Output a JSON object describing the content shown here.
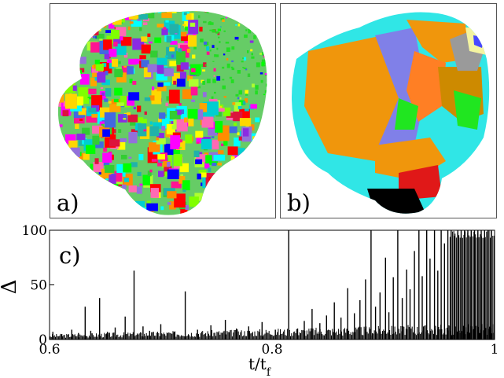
{
  "figure": {
    "panel_a_label": "a)",
    "panel_b_label": "b)",
    "panel_c_label": "c)"
  },
  "chart_data": {
    "type": "bar",
    "xlabel": "t/t",
    "xlabel_sub": "f",
    "ylabel": "Δ",
    "xlim": [
      0.6,
      1.0
    ],
    "ylim": [
      0,
      100
    ],
    "xticks": [
      0.6,
      0.8,
      1.0
    ],
    "xtick_labels": [
      "0.6",
      "0.8",
      "1"
    ],
    "yticks": [
      0,
      50,
      100
    ],
    "ytick_labels": [
      "0",
      "50",
      "100"
    ],
    "series_color": "#000000",
    "spikes": [
      [
        0.603,
        7
      ],
      [
        0.611,
        5
      ],
      [
        0.62,
        9
      ],
      [
        0.626,
        6
      ],
      [
        0.632,
        30
      ],
      [
        0.637,
        8
      ],
      [
        0.645,
        38
      ],
      [
        0.652,
        7
      ],
      [
        0.659,
        11
      ],
      [
        0.668,
        21
      ],
      [
        0.676,
        63
      ],
      [
        0.684,
        12
      ],
      [
        0.69,
        8
      ],
      [
        0.7,
        14
      ],
      [
        0.712,
        7
      ],
      [
        0.722,
        44
      ],
      [
        0.733,
        9
      ],
      [
        0.745,
        13
      ],
      [
        0.758,
        18
      ],
      [
        0.768,
        10
      ],
      [
        0.779,
        12
      ],
      [
        0.791,
        16
      ],
      [
        0.803,
        9
      ],
      [
        0.815,
        100
      ],
      [
        0.823,
        10
      ],
      [
        0.829,
        17
      ],
      [
        0.836,
        28
      ],
      [
        0.843,
        15
      ],
      [
        0.849,
        22
      ],
      [
        0.856,
        34
      ],
      [
        0.862,
        20
      ],
      [
        0.868,
        47
      ],
      [
        0.874,
        24
      ],
      [
        0.879,
        36
      ],
      [
        0.884,
        55
      ],
      [
        0.889,
        100
      ],
      [
        0.893,
        30
      ],
      [
        0.897,
        43
      ],
      [
        0.902,
        75
      ],
      [
        0.905,
        25
      ],
      [
        0.909,
        57
      ],
      [
        0.913,
        100
      ],
      [
        0.917,
        38
      ],
      [
        0.921,
        64
      ],
      [
        0.924,
        46
      ],
      [
        0.928,
        81
      ],
      [
        0.932,
        100
      ],
      [
        0.935,
        58
      ],
      [
        0.939,
        100
      ],
      [
        0.942,
        74
      ],
      [
        0.946,
        100
      ],
      [
        0.949,
        63
      ],
      [
        0.952,
        100
      ],
      [
        0.955,
        88
      ],
      [
        0.958,
        100
      ],
      [
        0.961,
        100
      ],
      [
        0.964,
        95
      ],
      [
        0.967,
        100
      ],
      [
        0.97,
        100
      ],
      [
        0.973,
        100
      ],
      [
        0.976,
        100
      ],
      [
        0.979,
        100
      ],
      [
        0.982,
        100
      ],
      [
        0.985,
        100
      ],
      [
        0.988,
        100
      ],
      [
        0.991,
        100
      ],
      [
        0.994,
        100
      ],
      [
        0.997,
        100
      ]
    ]
  }
}
